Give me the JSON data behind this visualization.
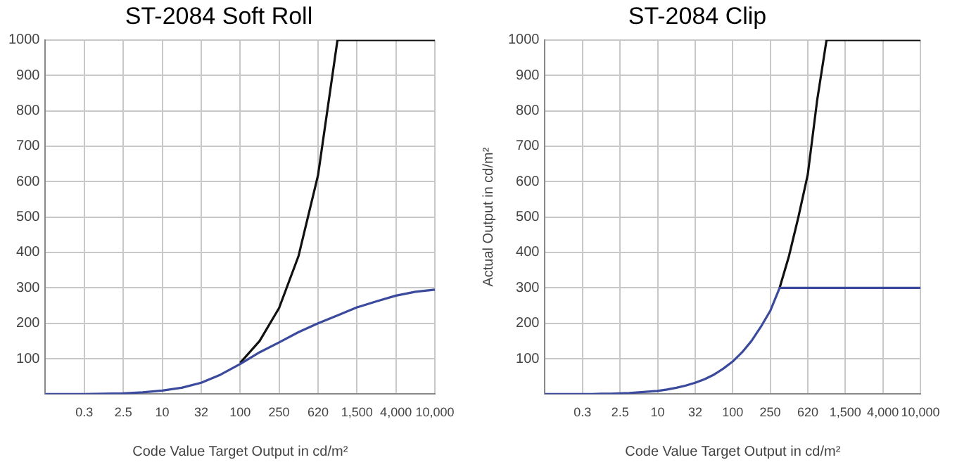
{
  "chart_data": [
    {
      "type": "line",
      "title": "ST-2084 Soft Roll",
      "xlabel": "Code Value Target Output in cd/m²",
      "categories": [
        null,
        null,
        "0.3",
        null,
        "2.5",
        null,
        "10",
        null,
        "32",
        null,
        "100",
        null,
        "250",
        null,
        "620",
        null,
        "1,500",
        null,
        "4,000",
        null,
        "10,000"
      ],
      "series": [
        {
          "color": "#111111",
          "values": [
            null,
            null,
            null,
            null,
            null,
            null,
            null,
            null,
            null,
            null,
            88,
            150,
            243,
            390,
            618,
            1000,
            1000,
            1000,
            1000,
            1000,
            1000
          ]
        },
        {
          "color": "#3b4a9c",
          "values": [
            0,
            0,
            0,
            1,
            2,
            5,
            10,
            18,
            32,
            55,
            85,
            118,
            146,
            175,
            200,
            222,
            245,
            262,
            278,
            289,
            295
          ]
        }
      ],
      "ylim": [
        0,
        1000
      ],
      "yticks": [
        100,
        200,
        300,
        400,
        500,
        600,
        700,
        800,
        900,
        1000
      ],
      "grid": true,
      "legend": false,
      "marker": "none"
    },
    {
      "type": "line",
      "title": "ST-2084 Clip",
      "xlabel": "Code Value Target Output in cd/m²",
      "ylabel": "Actual Output in cd/m²",
      "categories": [
        null,
        null,
        null,
        null,
        "0.3",
        null,
        null,
        null,
        "2.5",
        null,
        null,
        null,
        "10",
        null,
        null,
        null,
        "32",
        null,
        null,
        null,
        "100",
        null,
        null,
        null,
        "250",
        null,
        null,
        null,
        "620",
        null,
        null,
        null,
        "1,500",
        null,
        null,
        null,
        "4,000",
        null,
        null,
        null,
        "10,000"
      ],
      "series": [
        {
          "color": "#111111",
          "values": [
            null,
            null,
            null,
            null,
            null,
            null,
            null,
            null,
            null,
            null,
            null,
            null,
            null,
            null,
            null,
            null,
            null,
            null,
            null,
            null,
            null,
            null,
            null,
            null,
            null,
            300,
            390,
            500,
            620,
            830,
            1000,
            1000,
            1000,
            1000,
            1000,
            1000,
            1000,
            1000,
            1000,
            1000,
            1000
          ]
        },
        {
          "color": "#3b4a9c",
          "values": [
            0,
            0,
            0,
            0,
            0,
            0,
            1,
            1,
            2,
            3,
            5,
            7,
            9,
            13,
            18,
            24,
            32,
            42,
            55,
            72,
            92,
            118,
            150,
            190,
            235,
            300,
            300,
            300,
            300,
            300,
            300,
            300,
            300,
            300,
            300,
            300,
            300,
            300,
            300,
            300,
            300
          ]
        }
      ],
      "ylim": [
        0,
        1000
      ],
      "yticks": [
        100,
        200,
        300,
        400,
        500,
        600,
        700,
        800,
        900,
        1000
      ],
      "grid": true,
      "legend": false,
      "marker": "none"
    }
  ]
}
